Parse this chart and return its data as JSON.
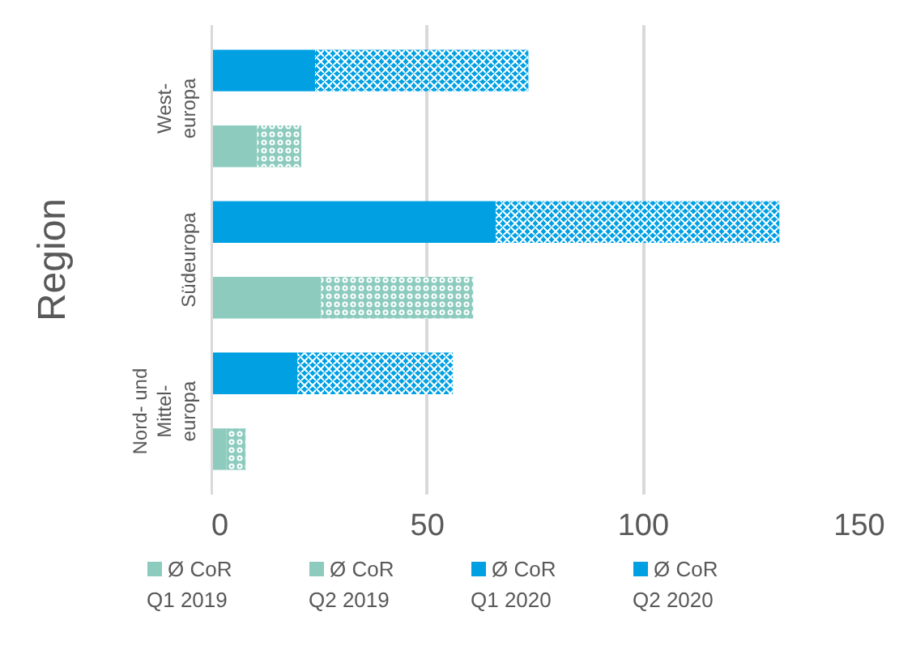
{
  "chart_data": {
    "type": "bar",
    "orientation": "horizontal",
    "stacked": true,
    "ylabel": "Region",
    "categories": [
      "West-\neuropa",
      null,
      "Südeuropa",
      null,
      "Nord- und\nMittel-\neuropa",
      null
    ],
    "series": [
      {
        "name": "Ø CoR\nQ1 2019",
        "color": "#8ccbbe",
        "values": [
          null,
          10.6,
          null,
          25.4,
          null,
          3.5
        ]
      },
      {
        "name": "Ø CoR\nQ2 2019",
        "color": "#8ccbbe",
        "values": [
          null,
          10.2,
          null,
          35.2,
          null,
          4.4
        ]
      },
      {
        "name": "Ø CoR\nQ1 2020",
        "color": "#00a0e3",
        "values": [
          24.0,
          null,
          65.8,
          null,
          19.9,
          null
        ]
      },
      {
        "name": "Ø CoR\nQ2 2020",
        "color": "#00a0e3",
        "values": [
          49.4,
          null,
          65.7,
          null,
          36.0,
          null
        ]
      }
    ],
    "xlim": [
      0,
      150
    ],
    "xticks": [
      0,
      50,
      100,
      150
    ],
    "grid": "x",
    "legend": "bottom"
  }
}
